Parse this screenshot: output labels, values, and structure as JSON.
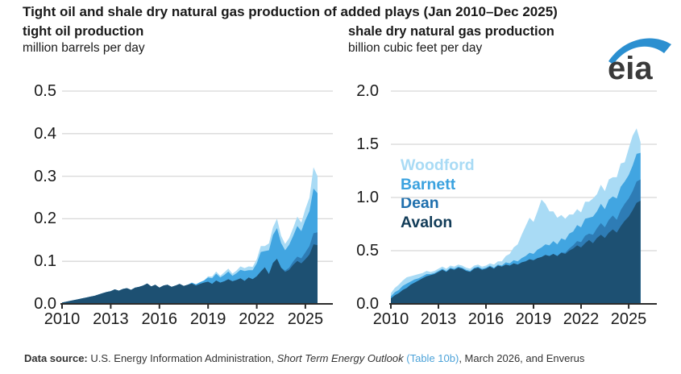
{
  "header": {
    "title": "Tight oil and shale dry natural gas production of added plays (Jan 2010–Dec 2025)"
  },
  "logo": {
    "text": "eia",
    "text_color": "#3a3a3a",
    "swoosh_color": "#2b8fd0"
  },
  "legend": {
    "items": [
      {
        "label": "Woodford",
        "color": "#a9dbf5"
      },
      {
        "label": "Barnett",
        "color": "#3ba2df"
      },
      {
        "label": "Dean",
        "color": "#1e6fad"
      },
      {
        "label": "Avalon",
        "color": "#123c58"
      }
    ]
  },
  "footer": {
    "link_color": "#4da3d9",
    "segments": [
      {
        "text": "Data source: ",
        "bold": true
      },
      {
        "text": "U.S. Energy Information Administration, "
      },
      {
        "text": "Short Term Energy Outlook",
        "italic": true
      },
      {
        "text": " "
      },
      {
        "text": "(Table 10b)",
        "link": true
      },
      {
        "text": ", March 2026, and Enverus"
      }
    ]
  },
  "chart_data": [
    {
      "type": "area",
      "stacked": true,
      "id": "tight-oil",
      "title": "tight oil production",
      "ylabel": "million barrels per day",
      "x_start": 2010,
      "x_step_years": 0.25,
      "x_end": 2025.75,
      "ylim": [
        0,
        0.5
      ],
      "yticks": [
        0.5,
        0.4,
        0.3,
        0.2,
        0.1,
        0.0
      ],
      "xticks": [
        2010,
        2013,
        2016,
        2019,
        2022,
        2025
      ],
      "grid": true,
      "series": [
        {
          "name": "Avalon",
          "color": "#1d5072",
          "values": [
            0.003,
            0.005,
            0.007,
            0.009,
            0.011,
            0.013,
            0.015,
            0.017,
            0.019,
            0.022,
            0.025,
            0.028,
            0.03,
            0.034,
            0.031,
            0.035,
            0.037,
            0.033,
            0.038,
            0.04,
            0.043,
            0.048,
            0.041,
            0.045,
            0.038,
            0.043,
            0.045,
            0.04,
            0.043,
            0.047,
            0.042,
            0.045,
            0.048,
            0.043,
            0.047,
            0.05,
            0.052,
            0.047,
            0.055,
            0.05,
            0.053,
            0.058,
            0.053,
            0.056,
            0.06,
            0.054,
            0.062,
            0.058,
            0.065,
            0.076,
            0.086,
            0.07,
            0.096,
            0.106,
            0.085,
            0.075,
            0.08,
            0.092,
            0.101,
            0.095,
            0.105,
            0.116,
            0.14,
            0.138
          ]
        },
        {
          "name": "Dean",
          "color": "#2e7cb5",
          "values": [
            0,
            0,
            0,
            0,
            0,
            0,
            0,
            0,
            0,
            0,
            0,
            0,
            0,
            0,
            0,
            0,
            0,
            0,
            0,
            0,
            0,
            0,
            0,
            0,
            0,
            0,
            0,
            0,
            0,
            0,
            0,
            0,
            0,
            0,
            0,
            0,
            0,
            0,
            0,
            0,
            0,
            0,
            0,
            0,
            0,
            0,
            0,
            0,
            0,
            0,
            0,
            0,
            0,
            0,
            0,
            0.003,
            0.005,
            0.008,
            0.01,
            0.012,
            0.016,
            0.02,
            0.026,
            0.03
          ]
        },
        {
          "name": "Barnett",
          "color": "#41a5e1",
          "values": [
            0,
            0,
            0,
            0,
            0,
            0,
            0,
            0,
            0,
            0,
            0,
            0,
            0,
            0,
            0,
            0,
            0,
            0,
            0,
            0,
            0,
            0,
            0,
            0,
            0,
            0,
            0,
            0,
            0,
            0,
            0,
            0,
            0.002,
            0.003,
            0.004,
            0.005,
            0.01,
            0.013,
            0.016,
            0.012,
            0.015,
            0.018,
            0.013,
            0.016,
            0.02,
            0.023,
            0.017,
            0.021,
            0.03,
            0.046,
            0.038,
            0.056,
            0.066,
            0.072,
            0.058,
            0.048,
            0.054,
            0.06,
            0.072,
            0.064,
            0.076,
            0.082,
            0.105,
            0.092
          ]
        },
        {
          "name": "Woodford",
          "color": "#a9dbf5",
          "values": [
            0,
            0,
            0,
            0,
            0,
            0,
            0,
            0,
            0,
            0,
            0,
            0,
            0,
            0,
            0,
            0,
            0,
            0,
            0,
            0,
            0,
            0,
            0,
            0,
            0,
            0,
            0,
            0,
            0,
            0,
            0,
            0,
            0,
            0,
            0,
            0,
            0.003,
            0.004,
            0.005,
            0.004,
            0.006,
            0.007,
            0.005,
            0.006,
            0.008,
            0.007,
            0.009,
            0.008,
            0.01,
            0.014,
            0.012,
            0.016,
            0.018,
            0.022,
            0.017,
            0.015,
            0.016,
            0.019,
            0.022,
            0.02,
            0.026,
            0.032,
            0.05,
            0.04
          ]
        }
      ]
    },
    {
      "type": "area",
      "stacked": true,
      "id": "shale-gas",
      "title": "shale dry natural gas production",
      "ylabel": "billion cubic feet per day",
      "x_start": 2010,
      "x_step_years": 0.25,
      "x_end": 2025.75,
      "ylim": [
        0,
        2.0
      ],
      "yticks": [
        2.0,
        1.5,
        1.0,
        0.5,
        0.0
      ],
      "xticks": [
        2010,
        2013,
        2016,
        2019,
        2022,
        2025
      ],
      "grid": true,
      "series": [
        {
          "name": "Avalon",
          "color": "#1d5072",
          "values": [
            0.05,
            0.08,
            0.1,
            0.13,
            0.15,
            0.18,
            0.2,
            0.22,
            0.24,
            0.26,
            0.27,
            0.28,
            0.3,
            0.32,
            0.3,
            0.33,
            0.32,
            0.34,
            0.33,
            0.31,
            0.3,
            0.33,
            0.34,
            0.32,
            0.33,
            0.35,
            0.33,
            0.36,
            0.35,
            0.37,
            0.36,
            0.38,
            0.37,
            0.39,
            0.4,
            0.42,
            0.41,
            0.43,
            0.44,
            0.46,
            0.45,
            0.47,
            0.45,
            0.48,
            0.47,
            0.5,
            0.52,
            0.55,
            0.53,
            0.57,
            0.6,
            0.57,
            0.62,
            0.65,
            0.62,
            0.67,
            0.7,
            0.67,
            0.73,
            0.78,
            0.82,
            0.88,
            0.95,
            0.97
          ]
        },
        {
          "name": "Dean",
          "color": "#2e7cb5",
          "values": [
            0,
            0,
            0,
            0,
            0,
            0,
            0,
            0,
            0,
            0,
            0,
            0,
            0,
            0,
            0,
            0,
            0,
            0,
            0,
            0,
            0,
            0,
            0,
            0,
            0,
            0,
            0,
            0,
            0,
            0,
            0,
            0,
            0,
            0,
            0,
            0,
            0,
            0,
            0,
            0,
            0,
            0,
            0,
            0.005,
            0.01,
            0.02,
            0.03,
            0.04,
            0.05,
            0.07,
            0.06,
            0.08,
            0.09,
            0.11,
            0.1,
            0.12,
            0.13,
            0.12,
            0.15,
            0.16,
            0.17,
            0.18,
            0.2,
            0.2
          ]
        },
        {
          "name": "Barnett",
          "color": "#41a5e1",
          "values": [
            0.02,
            0.03,
            0.03,
            0.04,
            0.04,
            0.03,
            0.03,
            0.02,
            0.02,
            0.02,
            0.01,
            0.01,
            0.01,
            0.01,
            0.01,
            0.01,
            0.01,
            0.01,
            0.01,
            0.01,
            0.01,
            0.01,
            0.01,
            0.01,
            0.01,
            0.01,
            0.01,
            0.01,
            0.01,
            0.02,
            0.02,
            0.03,
            0.03,
            0.04,
            0.05,
            0.06,
            0.06,
            0.08,
            0.09,
            0.1,
            0.1,
            0.12,
            0.11,
            0.13,
            0.12,
            0.14,
            0.13,
            0.15,
            0.14,
            0.16,
            0.15,
            0.17,
            0.16,
            0.18,
            0.17,
            0.19,
            0.18,
            0.2,
            0.22,
            0.21,
            0.22,
            0.24,
            0.26,
            0.25
          ]
        },
        {
          "name": "Woodford",
          "color": "#a9dbf5",
          "values": [
            0.03,
            0.04,
            0.05,
            0.05,
            0.06,
            0.05,
            0.04,
            0.04,
            0.03,
            0.03,
            0.02,
            0.02,
            0.02,
            0.02,
            0.02,
            0.02,
            0.02,
            0.02,
            0.02,
            0.02,
            0.02,
            0.02,
            0.02,
            0.02,
            0.02,
            0.02,
            0.03,
            0.03,
            0.04,
            0.06,
            0.09,
            0.12,
            0.16,
            0.22,
            0.28,
            0.33,
            0.3,
            0.36,
            0.45,
            0.38,
            0.32,
            0.28,
            0.25,
            0.22,
            0.2,
            0.18,
            0.16,
            0.15,
            0.14,
            0.16,
            0.15,
            0.17,
            0.16,
            0.18,
            0.17,
            0.19,
            0.18,
            0.2,
            0.22,
            0.18,
            0.25,
            0.28,
            0.24,
            0.1
          ]
        }
      ]
    }
  ]
}
